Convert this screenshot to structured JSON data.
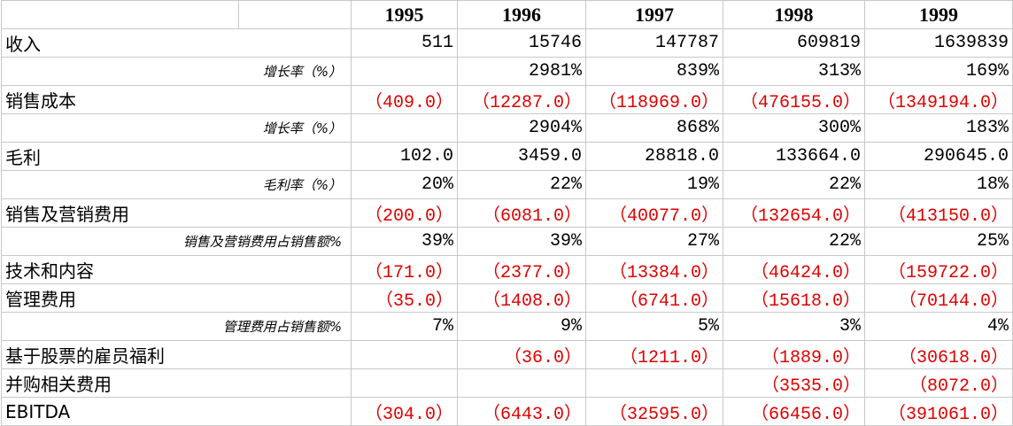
{
  "table": {
    "header": [
      "1995",
      "1996",
      "1997",
      "1998",
      "1999"
    ],
    "rows": [
      {
        "label": "收入",
        "cells": [
          "511",
          "15746",
          "147787",
          "609819",
          "1639839"
        ]
      },
      {
        "label": "增长率（%）",
        "cells": [
          null,
          "2981%",
          "839%",
          "313%",
          "169%"
        ]
      },
      {
        "label": "销售成本",
        "cells": [
          "（409.0）",
          "（12287.0）",
          "（118969.0）",
          "（476155.0）",
          "（1349194.0）"
        ]
      },
      {
        "label": "增长率（%）",
        "cells": [
          null,
          "2904%",
          "868%",
          "300%",
          "183%"
        ]
      },
      {
        "label": "毛利",
        "cells": [
          "102.0",
          "3459.0",
          "28818.0",
          "133664.0",
          "290645.0"
        ]
      },
      {
        "label": "毛利率（%）",
        "cells": [
          "20%",
          "22%",
          "19%",
          "22%",
          "18%"
        ]
      },
      {
        "label": "销售及营销费用",
        "cells": [
          "（200.0）",
          "（6081.0）",
          "（40077.0）",
          "（132654.0）",
          "（413150.0）"
        ]
      },
      {
        "label": "销售及营销费用占销售额%",
        "cells": [
          "39%",
          "39%",
          "27%",
          "22%",
          "25%"
        ]
      },
      {
        "label": "技术和内容",
        "cells": [
          "（171.0）",
          "（2377.0）",
          "（13384.0）",
          "（46424.0）",
          "（159722.0）"
        ]
      },
      {
        "label": "管理费用",
        "cells": [
          "（35.0）",
          "（1408.0）",
          "（6741.0）",
          "（15618.0）",
          "（70144.0）"
        ]
      },
      {
        "label": "管理费用占销售额%",
        "cells": [
          "7%",
          "9%",
          "5%",
          "3%",
          "4%"
        ]
      },
      {
        "label": "基于股票的雇员福利",
        "cells": [
          null,
          "（36.0）",
          "（1211.0）",
          "（1889.0）",
          "（30618.0）"
        ]
      },
      {
        "label": "并购相关费用",
        "cells": [
          null,
          null,
          null,
          "（3535.0）",
          "（8072.0）"
        ]
      },
      {
        "label": "EBITDA",
        "cells": [
          "（304.0）",
          "（6443.0）",
          "（32595.0）",
          "（66456.0）",
          "（391061.0）"
        ]
      }
    ]
  }
}
